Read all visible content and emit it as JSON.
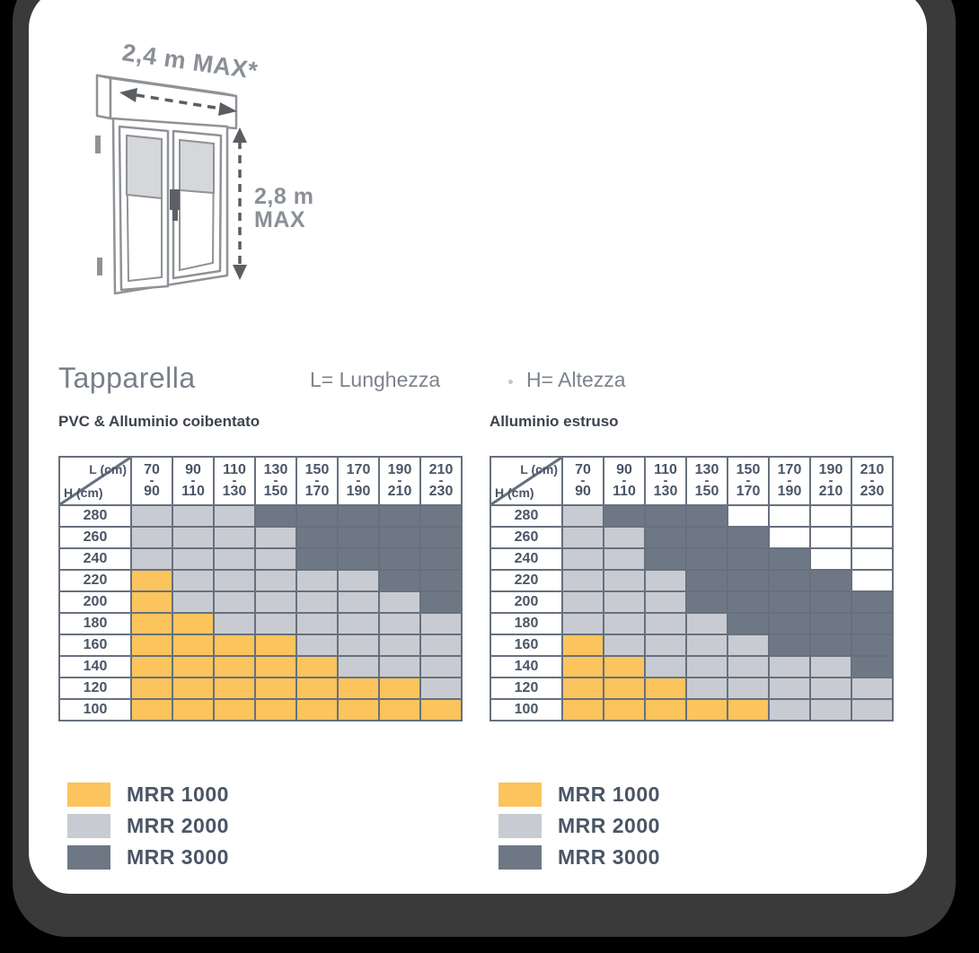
{
  "illustration": {
    "width_label": "2,4 m MAX*",
    "height_label_top": "2,8 m",
    "height_label_bottom": "MAX"
  },
  "header": {
    "title": "Tapparella",
    "length_note": "L= Lunghezza",
    "height_note": "H= Altezza"
  },
  "legend": {
    "items": [
      {
        "code": 1,
        "label": "MRR 1000",
        "color": "#FBC45D"
      },
      {
        "code": 2,
        "label": "MRR 2000",
        "color": "#C8CCD2"
      },
      {
        "code": 3,
        "label": "MRR 3000",
        "color": "#6E7885"
      }
    ],
    "empty_color": "#FFFFFF"
  },
  "chart_data": [
    {
      "type": "heatmap",
      "title": "PVC & Alluminio coibentato",
      "x_axis_label": "L (cm)",
      "y_axis_label": "H (cm)",
      "columns": [
        "70-90",
        "90-110",
        "110-130",
        "130-150",
        "150-170",
        "170-190",
        "190-210",
        "210-230"
      ],
      "rows": [
        "280",
        "260",
        "240",
        "220",
        "200",
        "180",
        "160",
        "140",
        "120",
        "100"
      ],
      "value_legend": {
        "0": "not available",
        "1": "MRR 1000",
        "2": "MRR 2000",
        "3": "MRR 3000"
      },
      "values": [
        [
          2,
          2,
          2,
          3,
          3,
          3,
          3,
          3
        ],
        [
          2,
          2,
          2,
          2,
          3,
          3,
          3,
          3
        ],
        [
          2,
          2,
          2,
          2,
          3,
          3,
          3,
          3
        ],
        [
          1,
          2,
          2,
          2,
          2,
          2,
          3,
          3
        ],
        [
          1,
          2,
          2,
          2,
          2,
          2,
          2,
          3
        ],
        [
          1,
          1,
          2,
          2,
          2,
          2,
          2,
          2
        ],
        [
          1,
          1,
          1,
          1,
          2,
          2,
          2,
          2
        ],
        [
          1,
          1,
          1,
          1,
          1,
          2,
          2,
          2
        ],
        [
          1,
          1,
          1,
          1,
          1,
          1,
          1,
          2
        ],
        [
          1,
          1,
          1,
          1,
          1,
          1,
          1,
          1
        ]
      ]
    },
    {
      "type": "heatmap",
      "title": "Alluminio estruso",
      "x_axis_label": "L (cm)",
      "y_axis_label": "H (cm)",
      "columns": [
        "70-90",
        "90-110",
        "110-130",
        "130-150",
        "150-170",
        "170-190",
        "190-210",
        "210-230"
      ],
      "rows": [
        "280",
        "260",
        "240",
        "220",
        "200",
        "180",
        "160",
        "140",
        "120",
        "100"
      ],
      "value_legend": {
        "0": "not available",
        "1": "MRR 1000",
        "2": "MRR 2000",
        "3": "MRR 3000"
      },
      "values": [
        [
          2,
          3,
          3,
          3,
          0,
          0,
          0,
          0
        ],
        [
          2,
          2,
          3,
          3,
          3,
          0,
          0,
          0
        ],
        [
          2,
          2,
          3,
          3,
          3,
          3,
          0,
          0
        ],
        [
          2,
          2,
          2,
          3,
          3,
          3,
          3,
          0
        ],
        [
          2,
          2,
          2,
          3,
          3,
          3,
          3,
          3
        ],
        [
          2,
          2,
          2,
          2,
          3,
          3,
          3,
          3
        ],
        [
          1,
          2,
          2,
          2,
          2,
          3,
          3,
          3
        ],
        [
          1,
          1,
          2,
          2,
          2,
          2,
          2,
          3
        ],
        [
          1,
          1,
          1,
          2,
          2,
          2,
          2,
          2
        ],
        [
          1,
          1,
          1,
          1,
          1,
          2,
          2,
          2
        ]
      ]
    }
  ]
}
